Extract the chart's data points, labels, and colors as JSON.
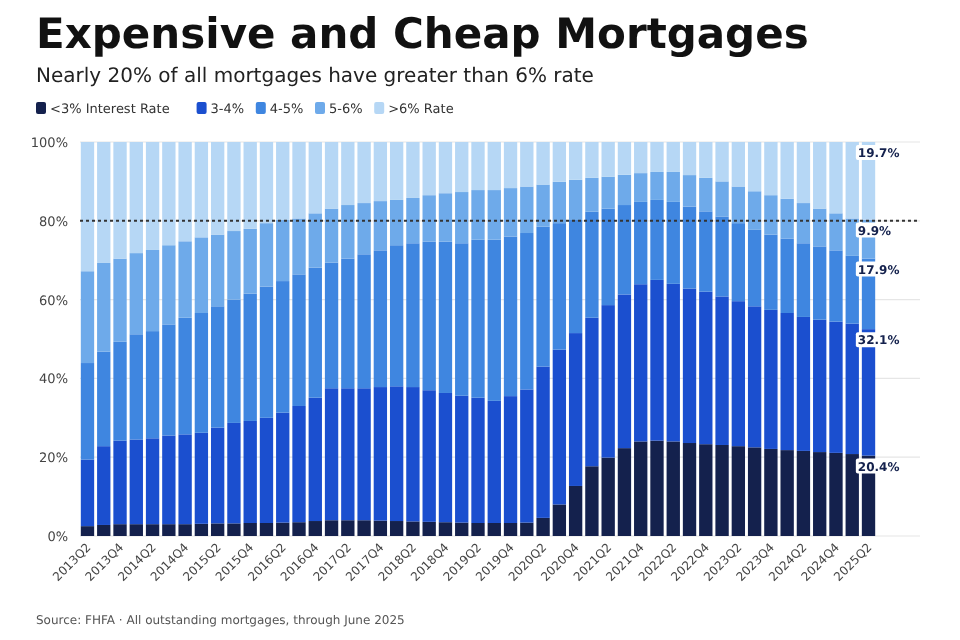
{
  "chart_data": {
    "type": "bar",
    "stacked": true,
    "title": "Expensive and Cheap Mortgages",
    "subtitle": "Nearly 20% of all mortgages have greater than 6% rate",
    "categories": [
      "2013Q2",
      null,
      "2013Q4",
      null,
      "2014Q2",
      null,
      "2014Q4",
      null,
      "2015Q2",
      null,
      "2015Q4",
      null,
      "2016Q2",
      null,
      "2016Q4",
      null,
      "2017Q2",
      null,
      "2017Q4",
      null,
      "2018Q2",
      null,
      "2018Q4",
      null,
      "2019Q2",
      null,
      "2019Q4",
      null,
      "2020Q2",
      null,
      "2020Q4",
      null,
      "2021Q2",
      null,
      "2021Q4",
      null,
      "2022Q2",
      null,
      "2022Q4",
      null,
      "2023Q2",
      null,
      "2023Q4",
      null,
      "2024Q2",
      null,
      "2024Q4",
      null,
      "2025Q2"
    ],
    "series": [
      {
        "name": "<3% Interest Rate",
        "color": "#14214d",
        "values": [
          2.5,
          2.8,
          3,
          3,
          3,
          3,
          3,
          3.1,
          3.2,
          3.2,
          3.3,
          3.3,
          3.4,
          3.5,
          3.8,
          4,
          4,
          4,
          3.9,
          3.8,
          3.7,
          3.6,
          3.5,
          3.4,
          3.3,
          3.3,
          3.3,
          3.4,
          4.6,
          8,
          12.7,
          17.7,
          19.9,
          22.3,
          24,
          24.2,
          24,
          23.6,
          23.3,
          23.1,
          22.8,
          22.5,
          22.1,
          21.8,
          21.6,
          21.3,
          21.1,
          20.8,
          20.4
        ],
        "value_labels": [
          null,
          null,
          null,
          null,
          null,
          null,
          null,
          null,
          null,
          null,
          null,
          null,
          null,
          null,
          null,
          null,
          null,
          null,
          null,
          null,
          null,
          null,
          null,
          null,
          null,
          null,
          null,
          null,
          null,
          null,
          null,
          null,
          null,
          null,
          null,
          null,
          null,
          null,
          null,
          null,
          null,
          null,
          null,
          null,
          null,
          null,
          null,
          null,
          "20.4%"
        ]
      },
      {
        "name": "3-4%",
        "color": "#1b4fcf",
        "values": [
          16.9,
          20.0,
          21.2,
          21.5,
          21.8,
          22.5,
          22.8,
          23.1,
          24.3,
          25.5,
          25.9,
          26.7,
          27.9,
          29.5,
          31.3,
          33.5,
          33.5,
          33.5,
          33.9,
          34.2,
          34.1,
          33.4,
          32.8,
          32.2,
          31.8,
          31.0,
          32.2,
          33.8,
          38.4,
          39.3,
          38.8,
          37.7,
          38.7,
          39.0,
          39.9,
          40.8,
          40.0,
          39.2,
          38.7,
          37.7,
          36.8,
          35.8,
          35.3,
          34.8,
          34.0,
          33.6,
          33.3,
          33.1,
          32.1
        ],
        "value_labels": [
          null,
          null,
          null,
          null,
          null,
          null,
          null,
          null,
          null,
          null,
          null,
          null,
          null,
          null,
          null,
          null,
          null,
          null,
          null,
          null,
          null,
          null,
          null,
          null,
          null,
          null,
          null,
          null,
          null,
          null,
          null,
          null,
          null,
          null,
          null,
          null,
          null,
          null,
          null,
          null,
          null,
          null,
          null,
          null,
          null,
          null,
          null,
          null,
          "32.1%"
        ]
      },
      {
        "name": "4-5%",
        "color": "#3f86e0",
        "values": [
          24.5,
          24.0,
          25.1,
          26.7,
          27.2,
          28.2,
          29.6,
          30.4,
          30.8,
          31.3,
          32.3,
          33.3,
          33.4,
          33.4,
          33.0,
          31.9,
          32.9,
          34.0,
          34.7,
          35.8,
          36.5,
          37.7,
          38.4,
          38.7,
          40.1,
          40.9,
          40.5,
          39.7,
          35.5,
          32.1,
          28.7,
          26.9,
          24.5,
          22.7,
          20.9,
          20.3,
          20.8,
          20.8,
          20.4,
          20.3,
          19.8,
          19.4,
          19.1,
          18.9,
          18.7,
          18.6,
          18.1,
          17.2,
          17.9
        ],
        "value_labels": [
          null,
          null,
          null,
          null,
          null,
          null,
          null,
          null,
          null,
          null,
          null,
          null,
          null,
          null,
          null,
          null,
          null,
          null,
          null,
          null,
          null,
          null,
          null,
          null,
          null,
          null,
          null,
          null,
          null,
          null,
          null,
          null,
          null,
          null,
          null,
          null,
          null,
          null,
          null,
          null,
          null,
          null,
          null,
          null,
          null,
          null,
          null,
          null,
          "17.9%"
        ]
      },
      {
        "name": "5-6%",
        "color": "#6eaaea",
        "values": [
          23.3,
          22.5,
          21.1,
          20.6,
          20.6,
          20.1,
          19.4,
          19.2,
          18.2,
          17.4,
          16.5,
          16.1,
          15.5,
          14.2,
          13.8,
          13.7,
          13.6,
          13.0,
          12.5,
          11.5,
          11.5,
          11.8,
          12.3,
          13.0,
          12.6,
          12.6,
          12.3,
          11.8,
          10.7,
          10.5,
          10.2,
          8.6,
          8.1,
          7.7,
          7.3,
          7.1,
          7.6,
          8.0,
          8.5,
          8.9,
          9.3,
          9.8,
          10.0,
          10.1,
          10.2,
          9.6,
          9.4,
          9.5,
          9.9
        ],
        "value_labels": [
          null,
          null,
          null,
          null,
          null,
          null,
          null,
          null,
          null,
          null,
          null,
          null,
          null,
          null,
          null,
          null,
          null,
          null,
          null,
          null,
          null,
          null,
          null,
          null,
          null,
          null,
          null,
          null,
          null,
          null,
          null,
          null,
          null,
          null,
          null,
          null,
          null,
          null,
          null,
          null,
          null,
          null,
          null,
          null,
          null,
          null,
          null,
          null,
          "9.9%"
        ]
      },
      {
        "name": ">6% Rate",
        "color": "#b6d7f5",
        "values": [
          32.8,
          30.7,
          29.6,
          28.2,
          27.4,
          26.2,
          25.2,
          24.2,
          23.5,
          22.6,
          22.0,
          20.6,
          19.8,
          19.4,
          18.1,
          16.9,
          16.0,
          15.5,
          15.0,
          14.7,
          14.2,
          13.5,
          13.0,
          12.7,
          12.2,
          12.2,
          11.7,
          11.3,
          10.8,
          10.1,
          9.6,
          9.1,
          8.8,
          8.3,
          7.9,
          7.6,
          7.6,
          8.4,
          9.1,
          10.0,
          11.3,
          12.5,
          13.5,
          14.4,
          15.5,
          16.9,
          18.1,
          19.4,
          19.7
        ],
        "value_labels": [
          null,
          null,
          null,
          null,
          null,
          null,
          null,
          null,
          null,
          null,
          null,
          null,
          null,
          null,
          null,
          null,
          null,
          null,
          null,
          null,
          null,
          null,
          null,
          null,
          null,
          null,
          null,
          null,
          null,
          null,
          null,
          null,
          null,
          null,
          null,
          null,
          null,
          null,
          null,
          null,
          null,
          null,
          null,
          null,
          null,
          null,
          null,
          null,
          "19.7%"
        ]
      }
    ],
    "ylim": [
      0,
      100
    ],
    "yticks": [
      {
        "value": 0,
        "label": "0%"
      },
      {
        "value": 20,
        "label": "20%"
      },
      {
        "value": 40,
        "label": "40%"
      },
      {
        "value": 60,
        "label": "60%"
      },
      {
        "value": 80,
        "label": "80%"
      },
      {
        "value": 100,
        "label": "100%"
      }
    ],
    "grid": "y",
    "legend": "top left",
    "ref_lines": [
      {
        "axis": "y",
        "value": 80,
        "color": "#333333",
        "line_style": "dotted"
      }
    ],
    "annotations": [
      "Source: FHFA · All outstanding mortgages, through June 2025"
    ]
  }
}
